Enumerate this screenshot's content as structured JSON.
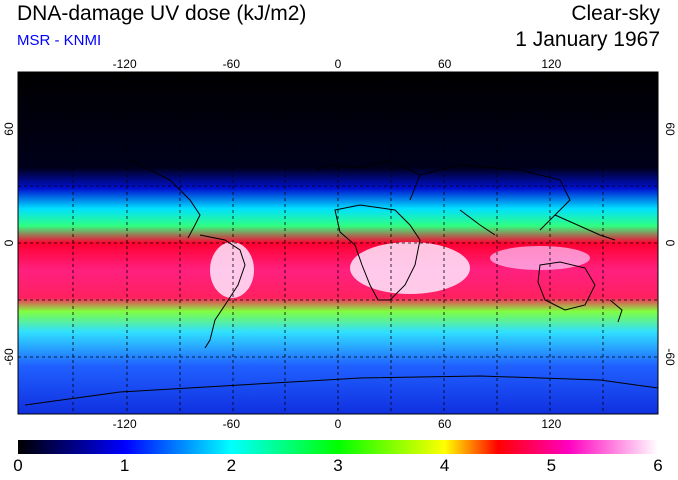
{
  "header": {
    "title": "DNA-damage UV dose (kJ/m2)",
    "subtitle": "MSR - KNMI",
    "condition": "Clear-sky",
    "date": "1 January 1967"
  },
  "map": {
    "lon_ticks": [
      "-120",
      "-60",
      "0",
      "60",
      "120"
    ],
    "lat_ticks": [
      "60",
      "0",
      "-60"
    ],
    "lon_range": [
      -180,
      180
    ],
    "lat_range": [
      -90,
      90
    ],
    "grid": "dashed, every 30 degrees"
  },
  "colorbar": {
    "labels": [
      "0",
      "1",
      "2",
      "3",
      "4",
      "5",
      "6"
    ],
    "min": 0,
    "max": 6,
    "colors": [
      "#000000",
      "#0000ff",
      "#00ffff",
      "#00ff00",
      "#ffff00",
      "#ff0000",
      "#ff00ff",
      "#ffffff"
    ]
  }
}
